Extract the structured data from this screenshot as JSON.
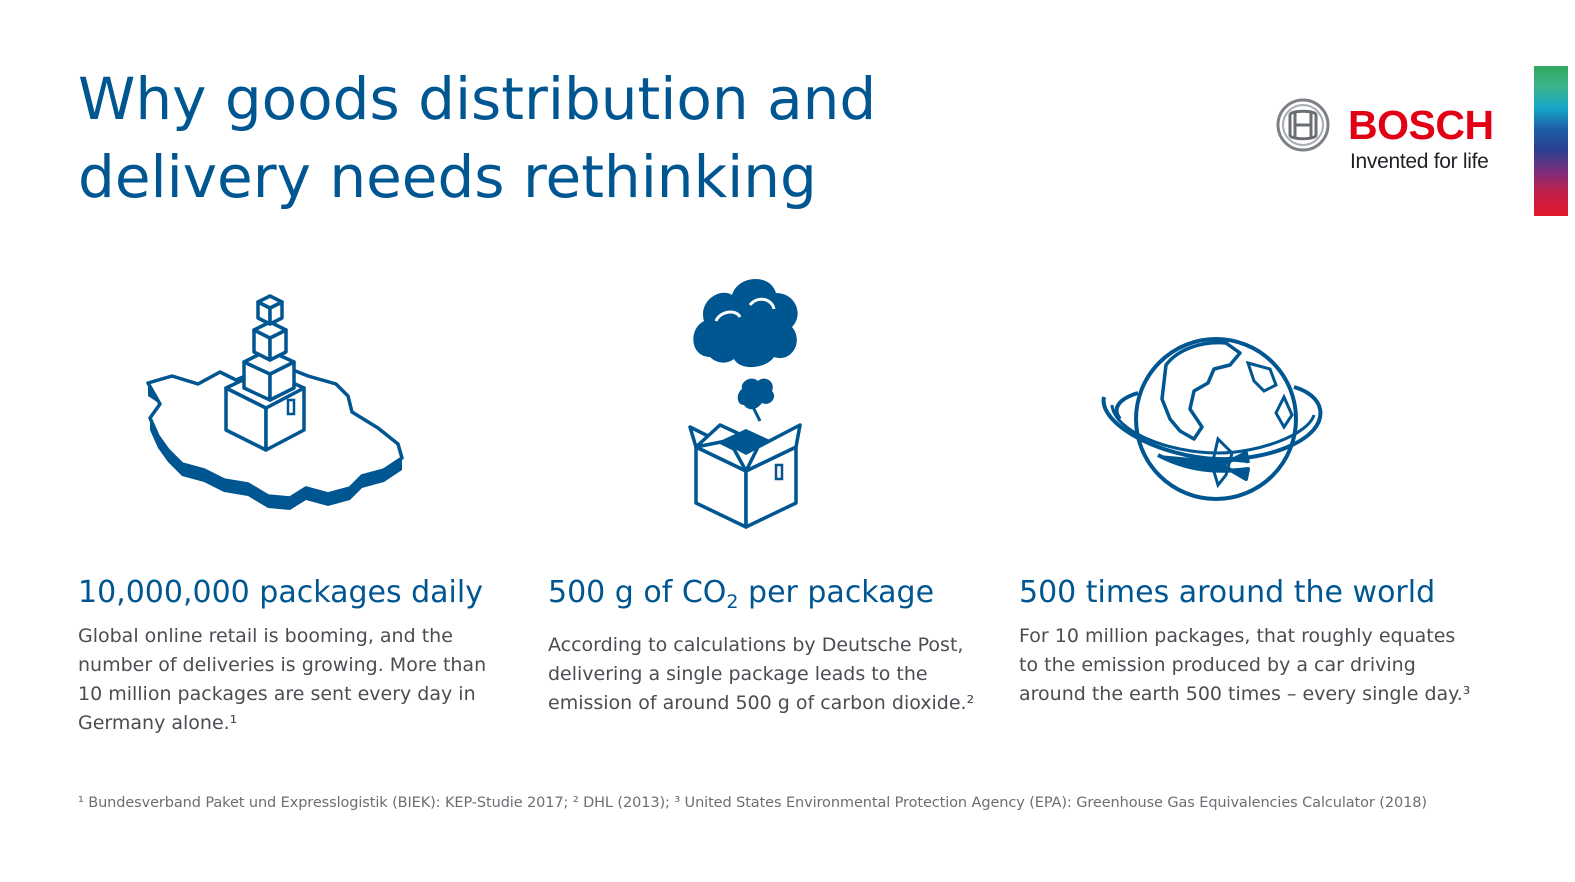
{
  "title": {
    "line1": "Why goods distribution and",
    "line2": "delivery needs rethinking"
  },
  "logo": {
    "wordmark": "BOSCH",
    "tagline": "Invented for life"
  },
  "colors": {
    "brand_blue": "#005691",
    "bosch_red": "#e20015",
    "body_text": "#4a4d52"
  },
  "icons": [
    "germany-map-packages-icon",
    "box-co2-cloud-icon",
    "globe-orbit-icon"
  ],
  "columns": [
    {
      "heading_pre": "10,000,000 packages daily",
      "heading_sub": "",
      "heading_post": "",
      "lines": [
        "Global online retail is booming, and the",
        "number of deliveries is growing. More than",
        "10 million packages are sent every day in",
        "Germany alone.¹"
      ]
    },
    {
      "heading_pre": "500 g of CO",
      "heading_sub": "2",
      "heading_post": " per package",
      "lines": [
        "According to calculations by Deutsche Post,",
        "delivering a single package leads to the",
        "emission of around 500 g of carbon dioxide.²",
        ""
      ]
    },
    {
      "heading_pre": "500 times around the world",
      "heading_sub": "",
      "heading_post": "",
      "lines": [
        "For 10 million packages, that roughly equates",
        "to the emission produced by a car driving",
        "around the earth 500 times – every single day.³",
        ""
      ]
    }
  ],
  "footnote": "¹ Bundesverband Paket und Expresslogistik (BIEK): KEP-Studie 2017; ² DHL (2013); ³ United States Environmental Protection Agency (EPA): Greenhouse Gas Equivalencies Calculator (2018)"
}
